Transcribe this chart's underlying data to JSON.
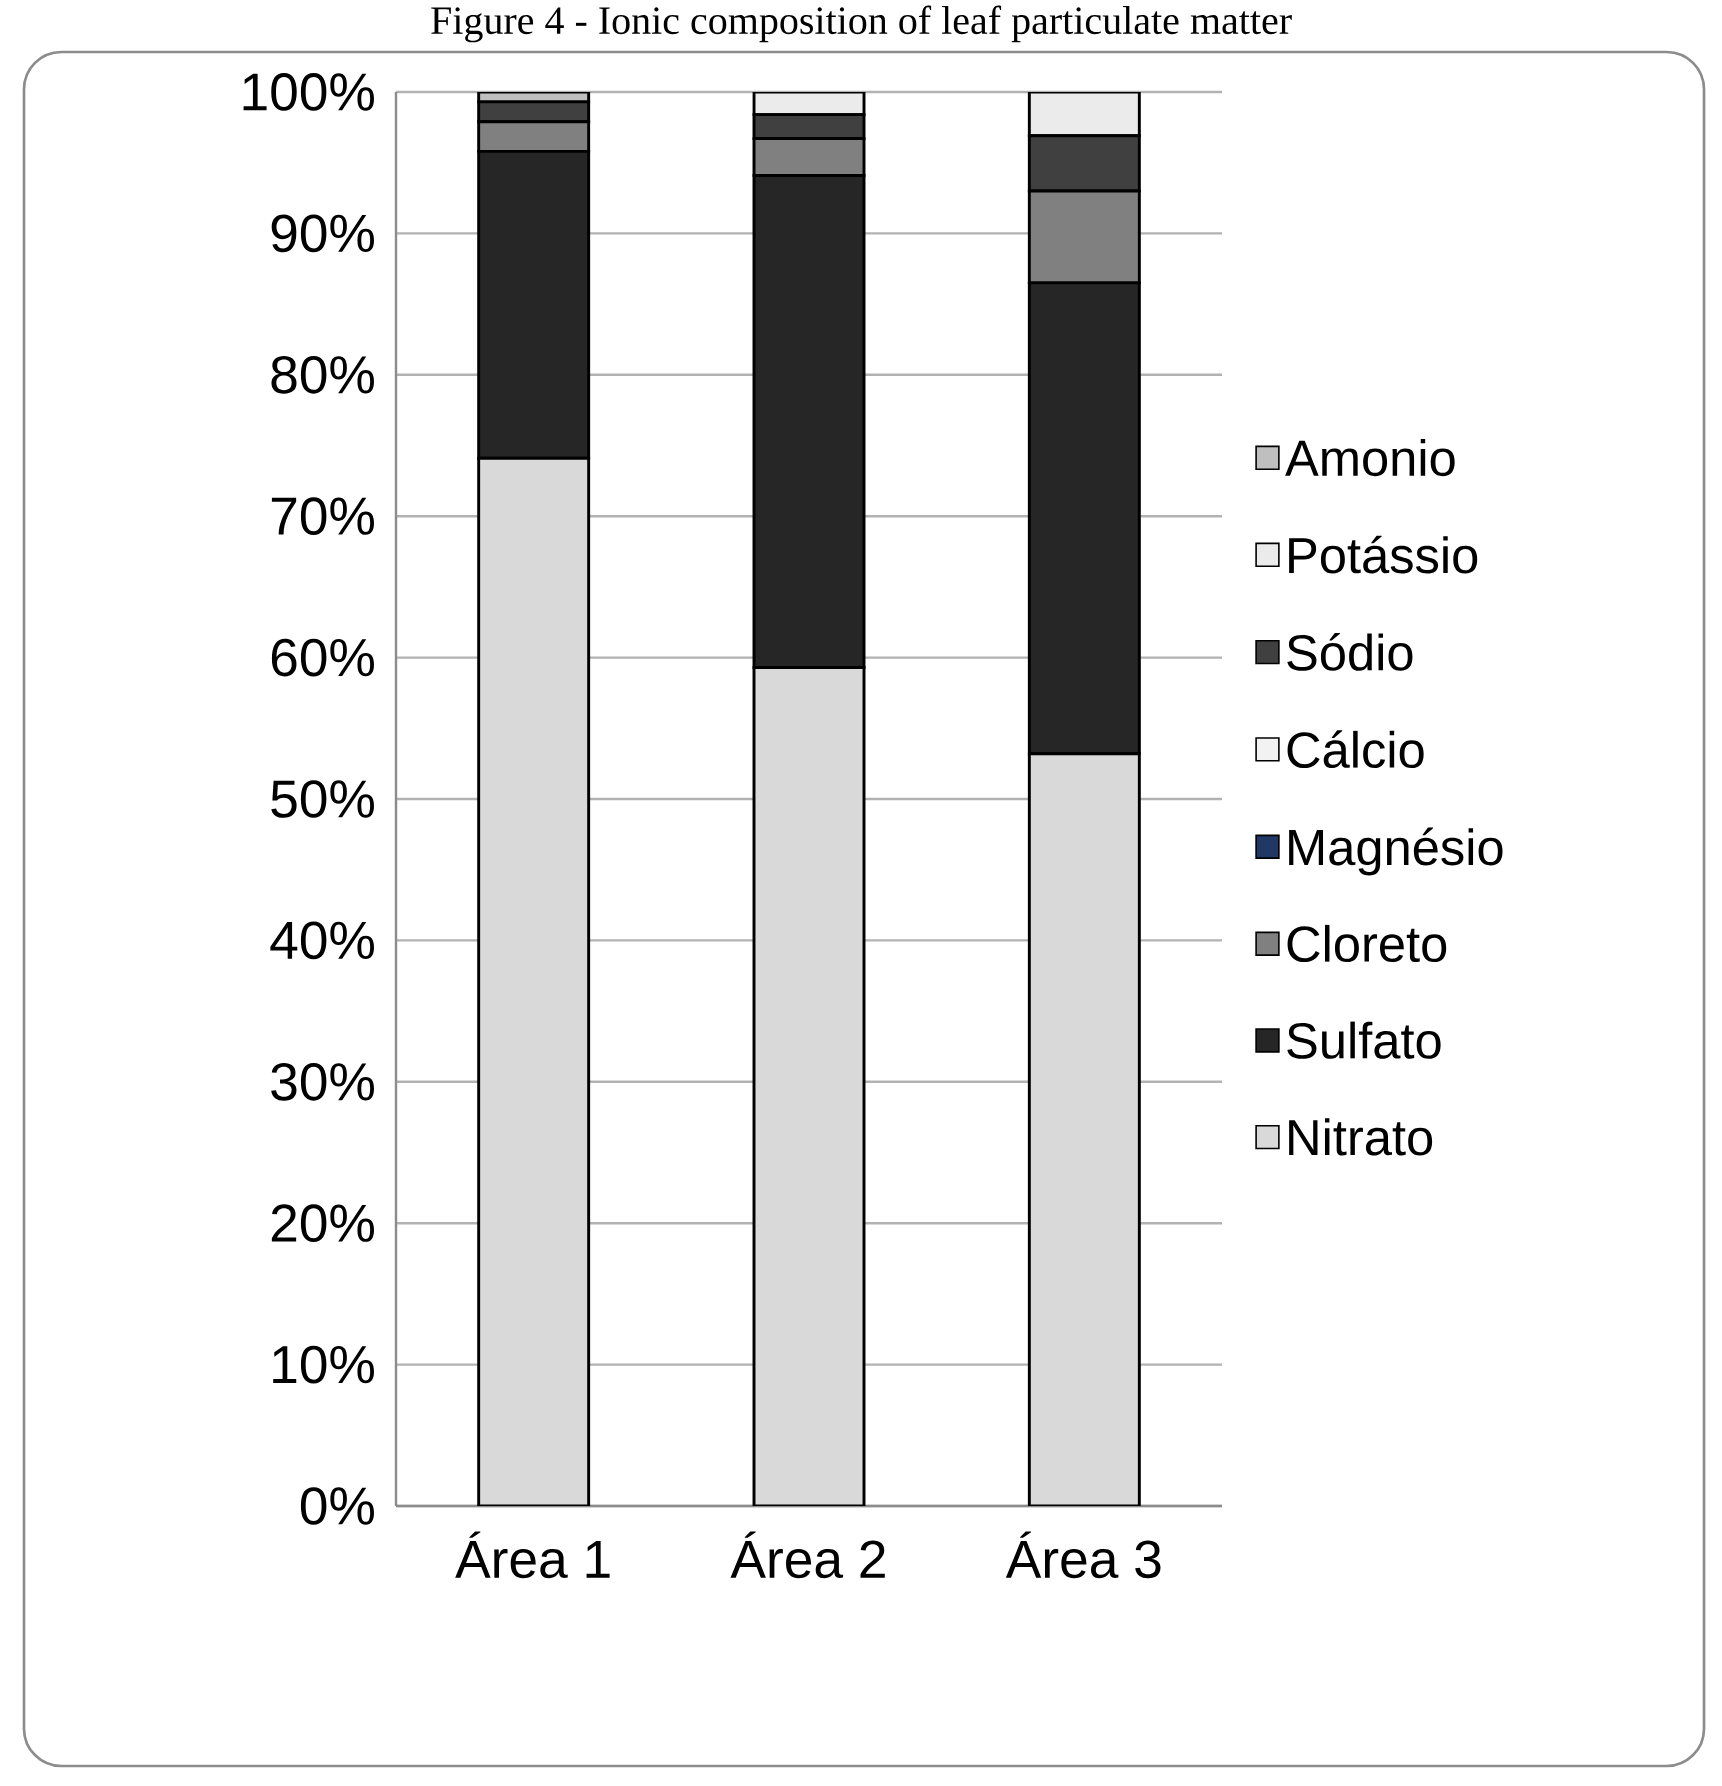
{
  "chart_data": {
    "type": "bar",
    "stacked": true,
    "title": "Figure 4 - Ionic composition of leaf particulate matter",
    "categories": [
      "Área 1",
      "Área 2",
      "Área 3"
    ],
    "series": [
      {
        "name": "Nitrato",
        "color": "#d9d9d9",
        "values": [
          74.1,
          59.3,
          53.2
        ]
      },
      {
        "name": "Sulfato",
        "color": "#262626",
        "values": [
          21.7,
          34.8,
          33.3
        ]
      },
      {
        "name": "Cloreto",
        "color": "#808080",
        "values": [
          2.1,
          2.6,
          6.5
        ]
      },
      {
        "name": "Magnésio",
        "color": "#1f3864",
        "values": [
          0,
          0,
          0
        ]
      },
      {
        "name": "Cálcio",
        "color": "#f2f2f2",
        "values": [
          0,
          0,
          0
        ]
      },
      {
        "name": "Sódio",
        "color": "#404040",
        "values": [
          1.4,
          1.7,
          3.9
        ]
      },
      {
        "name": "Potássio",
        "color": "#ebebeb",
        "values": [
          0,
          1.6,
          3.1
        ]
      },
      {
        "name": "Amonio",
        "color": "#bfbfbf",
        "values": [
          0.7,
          0,
          0
        ]
      }
    ],
    "ylim": [
      0,
      100
    ],
    "yticks": [
      {
        "value": 0,
        "label": "0%"
      },
      {
        "value": 10,
        "label": "10%"
      },
      {
        "value": 20,
        "label": "20%"
      },
      {
        "value": 30,
        "label": "30%"
      },
      {
        "value": 40,
        "label": "40%"
      },
      {
        "value": 50,
        "label": "50%"
      },
      {
        "value": 60,
        "label": "60%"
      },
      {
        "value": 70,
        "label": "70%"
      },
      {
        "value": 80,
        "label": "80%"
      },
      {
        "value": 90,
        "label": "90%"
      },
      {
        "value": 100,
        "label": "100%"
      }
    ],
    "grid": "y",
    "legend": "right"
  }
}
